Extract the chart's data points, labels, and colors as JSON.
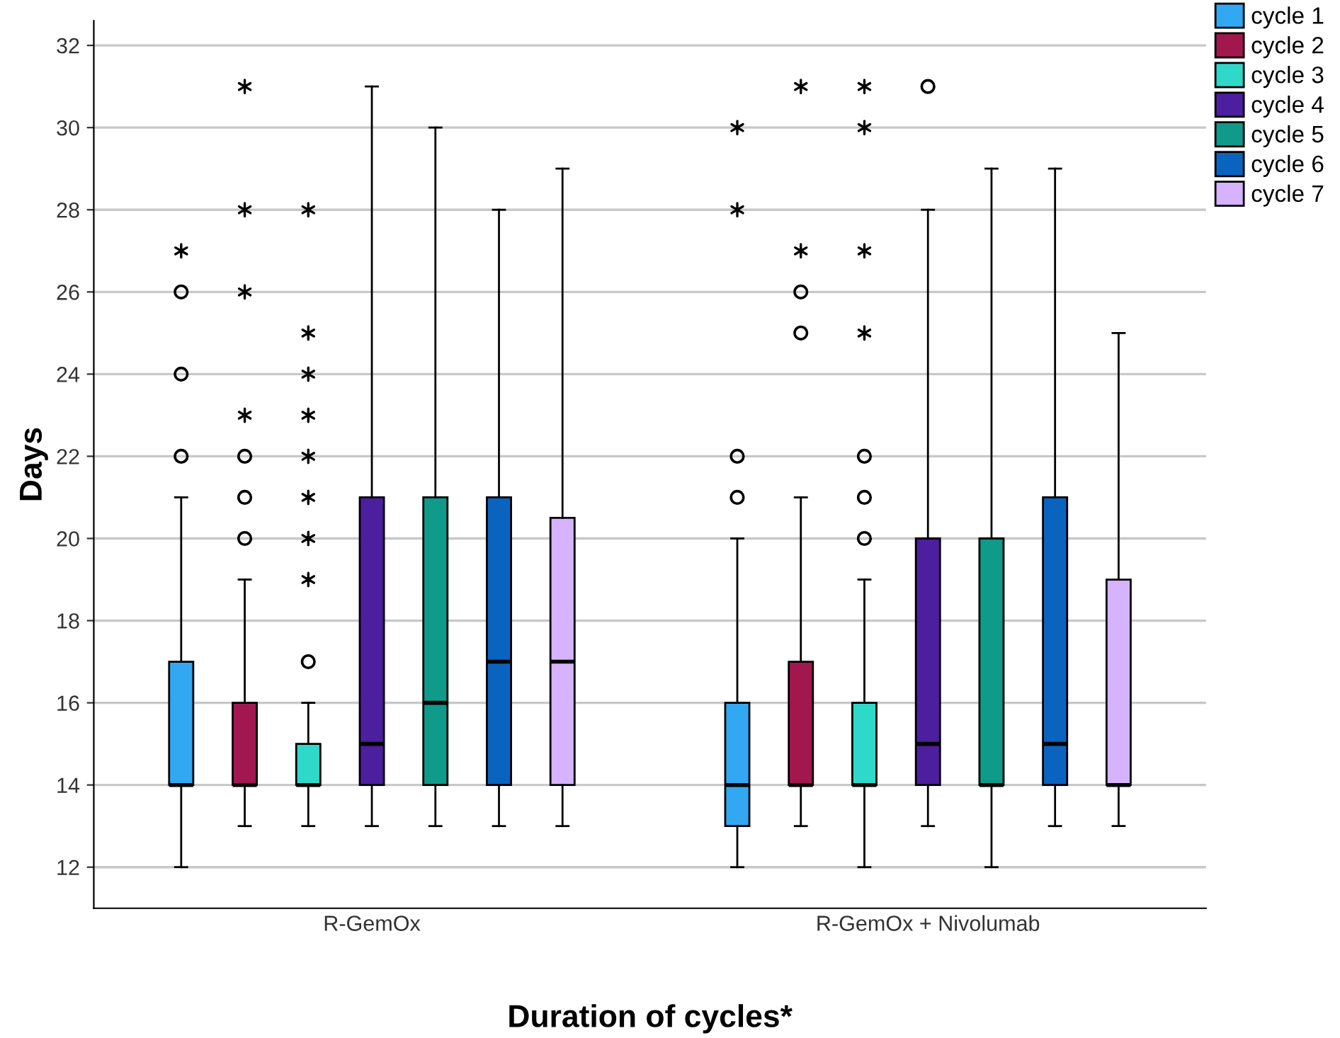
{
  "chart_data": {
    "type": "box",
    "xlabel": "Duration of cycles*",
    "ylabel": "Days",
    "categories": [
      "R-GemOx",
      "R-GemOx + Nivolumab"
    ],
    "ylim": [
      11,
      32.6
    ],
    "yticks": [
      12,
      14,
      16,
      18,
      20,
      22,
      24,
      26,
      28,
      30,
      32
    ],
    "grid": "y",
    "legend": "top right",
    "series": [
      {
        "name": "cycle 1",
        "color": "#33a8f2",
        "boxes": [
          {
            "low": 12,
            "q1": 14,
            "median": 14,
            "q3": 17,
            "high": 21,
            "outliers": [
              22,
              24,
              26,
              27
            ]
          },
          {
            "low": 12,
            "q1": 13,
            "median": 14,
            "q3": 16,
            "high": 20,
            "outliers": [
              21,
              22,
              28,
              30
            ]
          }
        ]
      },
      {
        "name": "cycle 2",
        "color": "#a3174f",
        "boxes": [
          {
            "low": 13,
            "q1": 14,
            "median": 14,
            "q3": 16,
            "high": 19,
            "outliers": [
              20,
              21,
              22,
              23,
              26,
              28,
              31
            ]
          },
          {
            "low": 13,
            "q1": 14,
            "median": 14,
            "q3": 17,
            "high": 21,
            "outliers": [
              25,
              26,
              27,
              31
            ]
          }
        ]
      },
      {
        "name": "cycle 3",
        "color": "#2fd9c9",
        "boxes": [
          {
            "low": 13,
            "q1": 14,
            "median": 14,
            "q3": 15,
            "high": 16,
            "outliers": [
              17,
              19,
              20,
              21,
              22,
              23,
              24,
              25,
              28
            ]
          },
          {
            "low": 12,
            "q1": 14,
            "median": 14,
            "q3": 16,
            "high": 19,
            "outliers": [
              20,
              21,
              22,
              25,
              27,
              30,
              31
            ]
          }
        ]
      },
      {
        "name": "cycle 4",
        "color": "#4c1f9e",
        "boxes": [
          {
            "low": 13,
            "q1": 14,
            "median": 15,
            "q3": 21,
            "high": 31
          },
          {
            "low": 13,
            "q1": 14,
            "median": 15,
            "q3": 20,
            "high": 28,
            "outliers": [
              31
            ]
          }
        ]
      },
      {
        "name": "cycle 5",
        "color": "#0f9a8a",
        "boxes": [
          {
            "low": 13,
            "q1": 14,
            "median": 16,
            "q3": 21,
            "high": 30
          },
          {
            "low": 12,
            "q1": 14,
            "median": 14,
            "q3": 20,
            "high": 29
          }
        ]
      },
      {
        "name": "cycle 6",
        "color": "#0b63c0",
        "boxes": [
          {
            "low": 13,
            "q1": 14,
            "median": 17,
            "q3": 21,
            "high": 28
          },
          {
            "low": 13,
            "q1": 14,
            "median": 15,
            "q3": 21,
            "high": 29
          }
        ]
      },
      {
        "name": "cycle 7",
        "color": "#d5b3ff",
        "boxes": [
          {
            "low": 13,
            "q1": 14,
            "median": 17,
            "q3": 20.5,
            "high": 29
          },
          {
            "low": 13,
            "q1": 14,
            "median": 14,
            "q3": 19,
            "high": 25
          }
        ]
      }
    ]
  }
}
